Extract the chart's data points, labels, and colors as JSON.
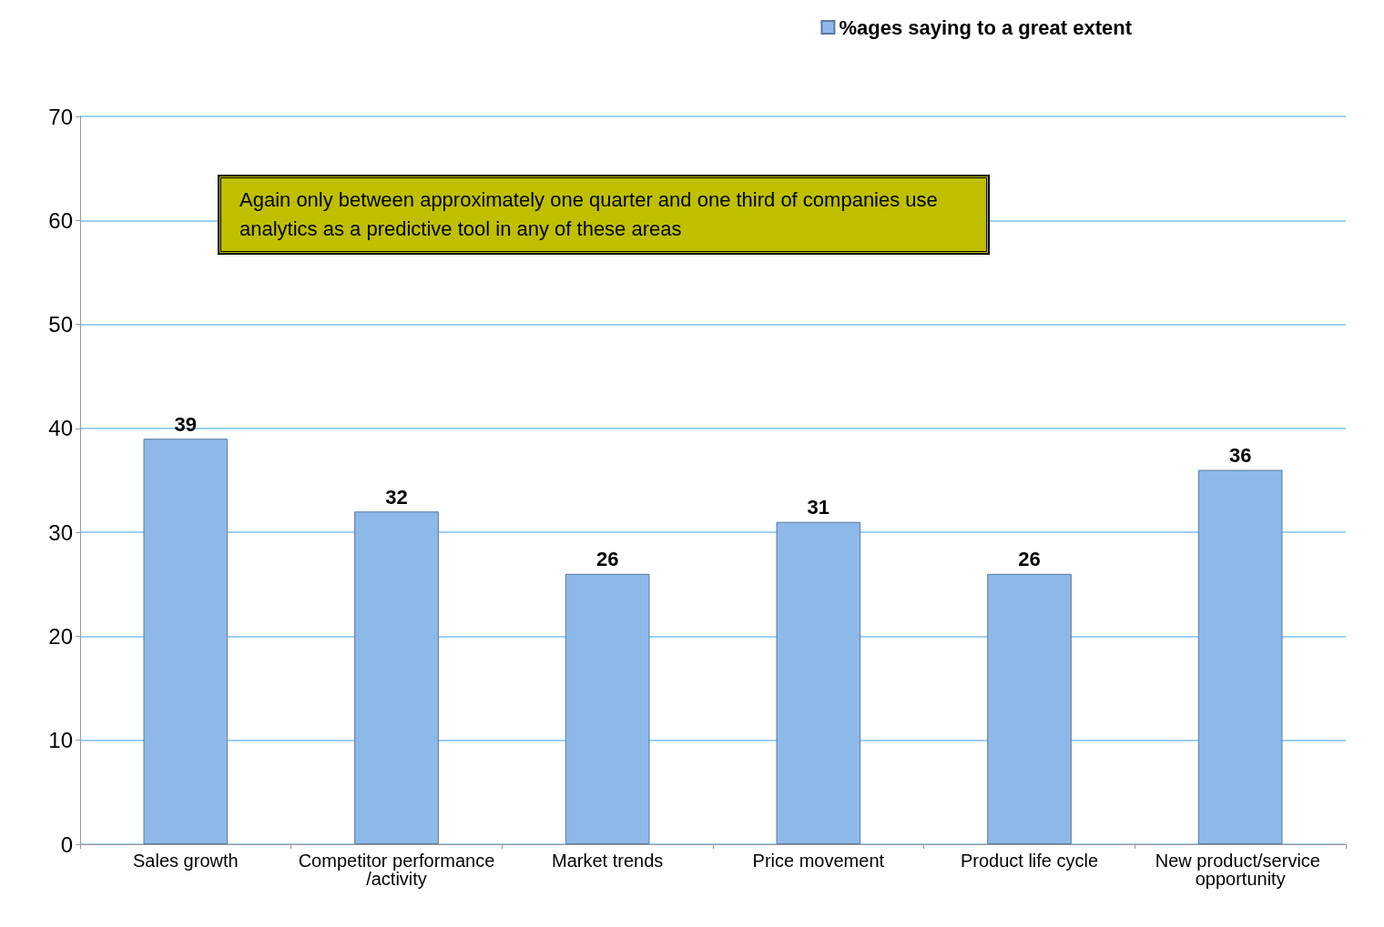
{
  "chart_data": {
    "type": "bar",
    "categories": [
      "Sales growth",
      "Competitor performance/activity",
      "Market trends",
      "Price movement",
      "Product life cycle",
      "New product/service opportunity"
    ],
    "series": [
      {
        "name": "%ages saying to a great extent",
        "color": "#8db9ea",
        "values": [
          39,
          32,
          26,
          31,
          26,
          36
        ]
      }
    ],
    "ylim": [
      0,
      70
    ],
    "yticks": [
      0,
      10,
      20,
      30,
      40,
      50,
      60,
      70
    ],
    "grid": "y",
    "legend": "top right",
    "data_labels": true,
    "annotations": [
      "Again only between approximately one quarter and one third of companies use analytics as a predictive tool in any of these areas"
    ]
  }
}
